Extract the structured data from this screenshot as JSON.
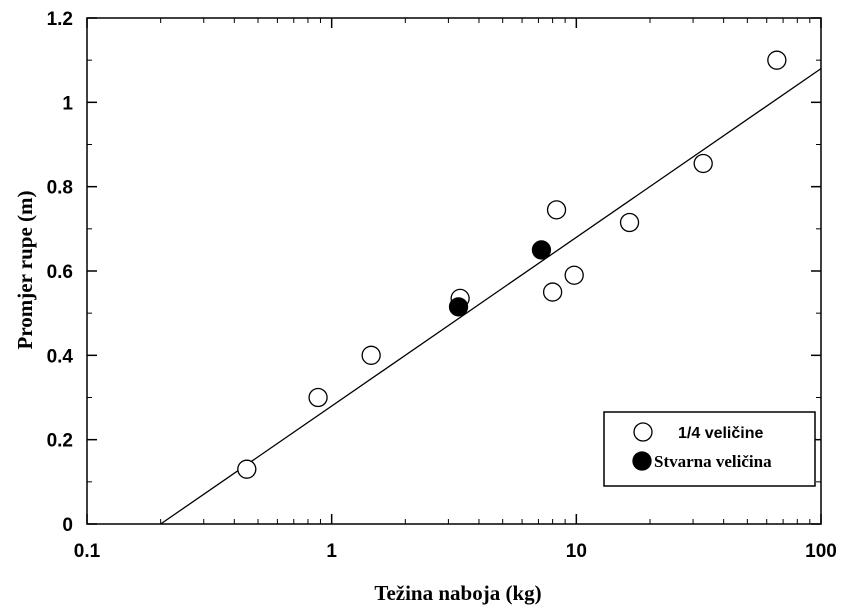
{
  "chart_data": {
    "type": "scatter",
    "xlabel": "Težina naboja (kg)",
    "ylabel": "Promjer rupe (m)",
    "xscale": "log",
    "xlim": [
      0.1,
      100
    ],
    "ylim": [
      0,
      1.2
    ],
    "x_ticks": [
      0.1,
      1,
      10,
      100
    ],
    "x_tick_labels": [
      "0.1",
      "1",
      "10",
      "100"
    ],
    "y_ticks": [
      0,
      0.2,
      0.4,
      0.6,
      0.8,
      1,
      1.2
    ],
    "y_tick_labels": [
      "0",
      "0.2",
      "0.4",
      "0.6",
      "0.8",
      "1",
      "1.2"
    ],
    "grid": false,
    "legend_position": "bottom-right",
    "series": [
      {
        "name": "1/4 veličine",
        "marker": "open-circle",
        "x": [
          0.45,
          0.88,
          1.45,
          3.35,
          8.0,
          8.3,
          9.8,
          16.5,
          33.0,
          66.0
        ],
        "y": [
          0.13,
          0.3,
          0.4,
          0.535,
          0.55,
          0.745,
          0.59,
          0.715,
          0.855,
          1.1
        ]
      },
      {
        "name": "Stvarna veličina",
        "marker": "filled-circle",
        "x": [
          3.3,
          7.2
        ],
        "y": [
          0.515,
          0.65
        ]
      }
    ],
    "fit_line": {
      "type": "linear-in-log-x",
      "points": [
        [
          0.2,
          0
        ],
        [
          100,
          1.08
        ]
      ]
    },
    "colors": {
      "marker_fill_open": "#ffffff",
      "marker_fill_filled": "#000000",
      "stroke": "#000000"
    }
  }
}
